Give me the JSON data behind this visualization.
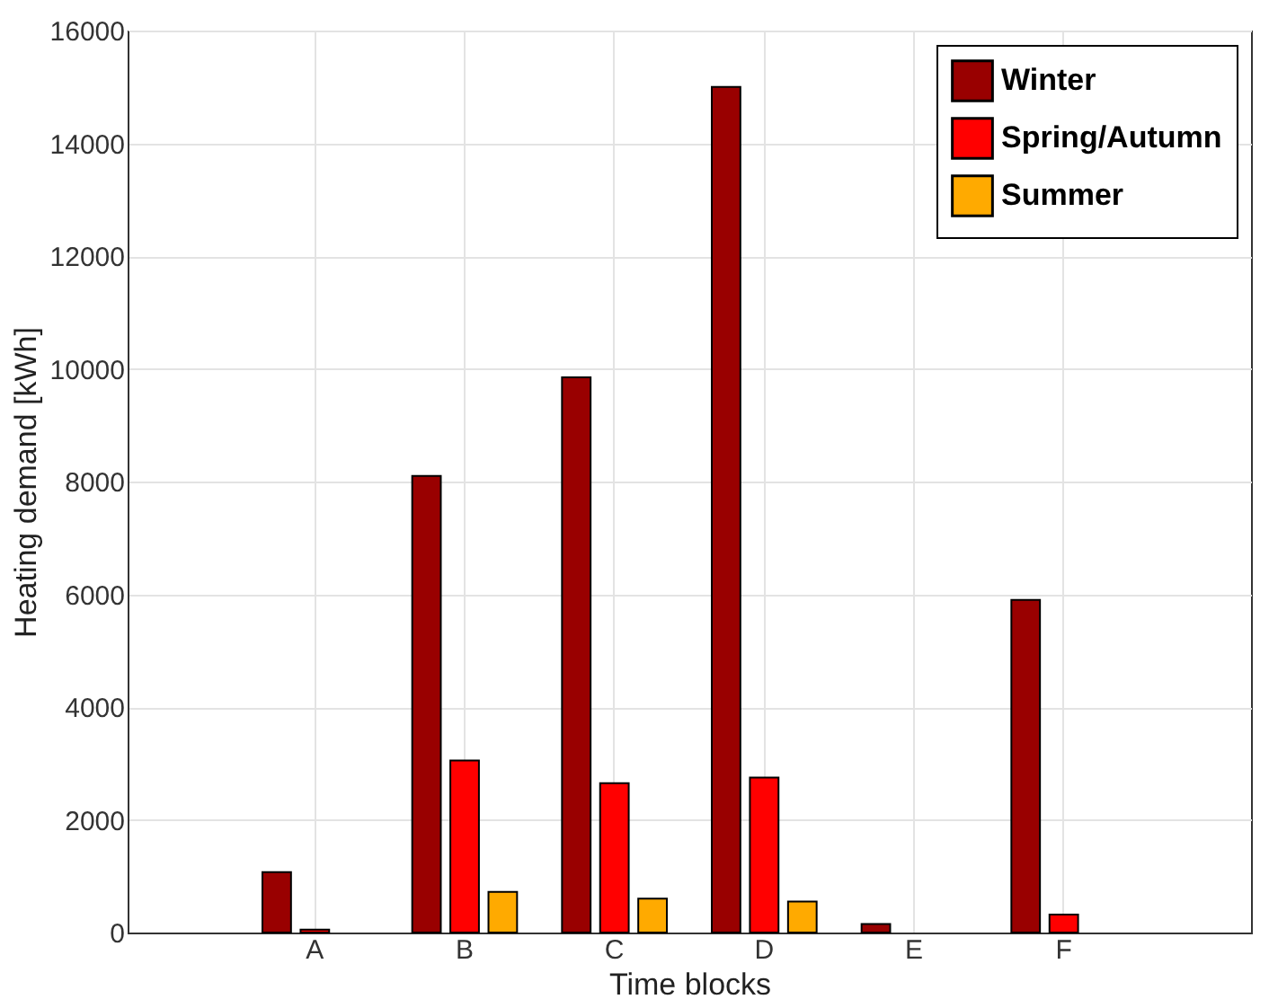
{
  "chart_data": {
    "type": "bar",
    "xlabel": "Time blocks",
    "ylabel": "Heating demand [kWh]",
    "categories": [
      "A",
      "B",
      "C",
      "D",
      "E",
      "F"
    ],
    "series": [
      {
        "name": "Winter",
        "color": "#990000",
        "values": [
          1070,
          8100,
          9850,
          15000,
          150,
          5900
        ]
      },
      {
        "name": "Spring/Autumn",
        "color": "#ff0000",
        "values": [
          50,
          3050,
          2650,
          2750,
          null,
          320
        ]
      },
      {
        "name": "Summer",
        "color": "#ffaa00",
        "values": [
          null,
          720,
          600,
          550,
          null,
          null
        ]
      }
    ],
    "ylim": [
      0,
      16000
    ],
    "yticks": [
      0,
      2000,
      4000,
      6000,
      8000,
      10000,
      12000,
      14000,
      16000
    ],
    "grid": true,
    "legend": "top right"
  }
}
